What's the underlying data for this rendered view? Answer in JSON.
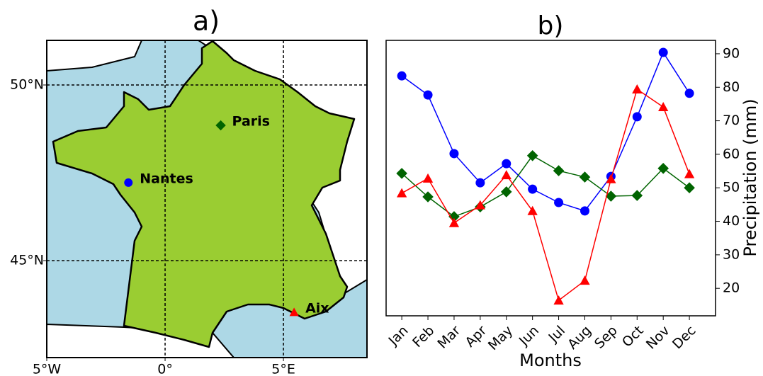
{
  "chart_data": [
    {
      "type": "map",
      "title": "a)",
      "xlim": [
        -5,
        8.53
      ],
      "ylim": [
        42.24,
        51.27
      ],
      "xticks": [
        {
          "value": -5,
          "label": "5°W"
        },
        {
          "value": 0,
          "label": "0°"
        },
        {
          "value": 5,
          "label": "5°E"
        }
      ],
      "yticks": [
        {
          "value": 45,
          "label": "45°N"
        },
        {
          "value": 50,
          "label": "50°N"
        }
      ],
      "grid": true,
      "points": [
        {
          "label": "Paris",
          "x": 2.35,
          "y": 48.85,
          "color": "#006400",
          "marker": "D"
        },
        {
          "label": "Nantes",
          "x": -1.55,
          "y": 47.22,
          "color": "#0000ff",
          "marker": "o"
        },
        {
          "label": "Aix",
          "x": 5.45,
          "y": 43.53,
          "color": "#ff0000",
          "marker": "^"
        }
      ]
    },
    {
      "type": "line",
      "title": "b)",
      "x_label": "Months",
      "y_label": "Precipitation (mm)",
      "categories": [
        "Jan",
        "Feb",
        "Mar",
        "Apr",
        "May",
        "Jun",
        "Jul",
        "Aug",
        "Sep",
        "Oct",
        "Nov",
        "Dec"
      ],
      "series": [
        {
          "color": "#0000ff",
          "marker": "o",
          "values": [
            83.4,
            77.7,
            60.2,
            51.5,
            57.2,
            49.6,
            45.6,
            43.1,
            53.4,
            71.2,
            90.4,
            78.2
          ]
        },
        {
          "color": "#006400",
          "marker": "D",
          "values": [
            54.3,
            47.3,
            41.4,
            44.3,
            48.8,
            59.6,
            55.1,
            53.2,
            47.5,
            47.7,
            55.8,
            50.0
          ]
        },
        {
          "color": "#ff0000",
          "marker": "^",
          "values": [
            48.4,
            52.8,
            39.5,
            44.8,
            53.8,
            43.1,
            16.4,
            22.3,
            52.6,
            79.4,
            74.1,
            54.1
          ]
        }
      ],
      "ylim": [
        11.8,
        94.0
      ],
      "yticks": [
        20,
        30,
        40,
        50,
        60,
        70,
        80,
        90
      ],
      "y_axis_side": "right"
    }
  ]
}
